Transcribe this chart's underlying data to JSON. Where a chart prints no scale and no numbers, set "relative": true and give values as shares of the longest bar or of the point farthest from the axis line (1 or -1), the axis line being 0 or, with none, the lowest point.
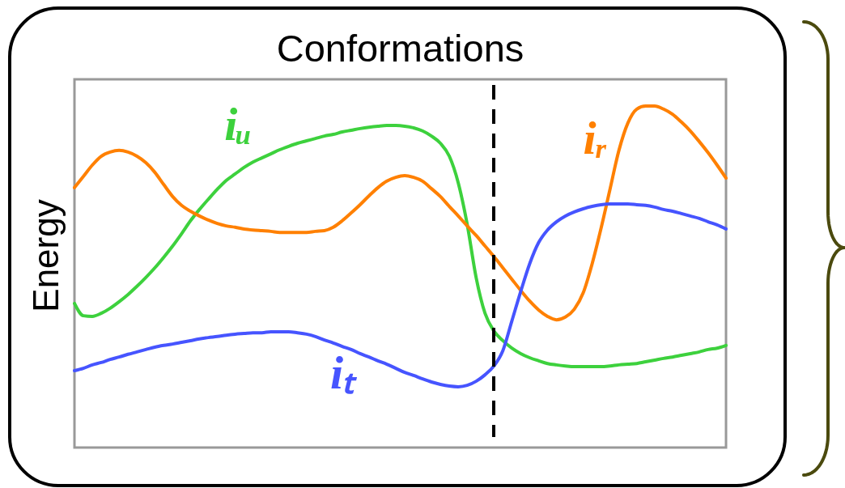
{
  "chart_data": {
    "type": "line",
    "title": "Conformations",
    "ylabel": "Energy",
    "relative": true,
    "tick_labels": false,
    "line_style": "solid",
    "categories": [
      null,
      null,
      null,
      null,
      null,
      null,
      null,
      null,
      null,
      null,
      null,
      null,
      null,
      null,
      null,
      null,
      null,
      null,
      null,
      null,
      null,
      null,
      null,
      null,
      null,
      null,
      null,
      null,
      null,
      null,
      null,
      null,
      null,
      null,
      null,
      null,
      null,
      null,
      null,
      null,
      null,
      null,
      null,
      null,
      null,
      null,
      null,
      null,
      null,
      null,
      null,
      null,
      null,
      null,
      null,
      null,
      null,
      null,
      null,
      null,
      null,
      null,
      null,
      null,
      null,
      null,
      null,
      null,
      null,
      null,
      null,
      null,
      null,
      null
    ],
    "series": [
      {
        "name": "iᵤ",
        "color": "#3dd13d",
        "values": [
          0.422,
          0.386,
          0.384,
          0.393,
          0.408,
          0.427,
          0.448,
          0.472,
          0.498,
          0.526,
          0.557,
          0.59,
          0.626,
          0.664,
          0.697,
          0.727,
          0.756,
          0.782,
          0.801,
          0.82,
          0.836,
          0.848,
          0.86,
          0.872,
          0.882,
          0.891,
          0.898,
          0.905,
          0.912,
          0.917,
          0.924,
          0.929,
          0.934,
          0.938,
          0.941,
          0.943,
          0.943,
          0.941,
          0.936,
          0.927,
          0.912,
          0.891,
          0.853,
          0.775,
          0.654,
          0.498,
          0.393,
          0.341,
          0.313,
          0.291,
          0.275,
          0.263,
          0.254,
          0.246,
          0.242,
          0.239,
          0.237,
          0.237,
          0.237,
          0.237,
          0.239,
          0.242,
          0.244,
          0.246,
          0.251,
          0.256,
          0.261,
          0.265,
          0.27,
          0.275,
          0.28,
          0.287,
          0.291,
          0.299
        ]
      },
      {
        "name": "iᵣ",
        "color": "#ff8000",
        "values": [
          0.761,
          0.794,
          0.827,
          0.853,
          0.865,
          0.87,
          0.865,
          0.853,
          0.834,
          0.806,
          0.77,
          0.735,
          0.709,
          0.692,
          0.678,
          0.666,
          0.656,
          0.649,
          0.645,
          0.64,
          0.637,
          0.635,
          0.633,
          0.63,
          0.63,
          0.63,
          0.63,
          0.633,
          0.635,
          0.645,
          0.664,
          0.687,
          0.711,
          0.737,
          0.761,
          0.78,
          0.791,
          0.796,
          0.791,
          0.78,
          0.758,
          0.735,
          0.706,
          0.678,
          0.649,
          0.621,
          0.59,
          0.559,
          0.526,
          0.493,
          0.46,
          0.429,
          0.403,
          0.384,
          0.374,
          0.382,
          0.405,
          0.453,
          0.538,
          0.642,
          0.756,
          0.87,
          0.95,
          0.991,
          1.0,
          1.0,
          0.991,
          0.976,
          0.953,
          0.927,
          0.896,
          0.863,
          0.827,
          0.789
        ]
      },
      {
        "name": "iₜ",
        "color": "#4654ff",
        "values": [
          0.225,
          0.232,
          0.242,
          0.249,
          0.258,
          0.265,
          0.273,
          0.28,
          0.287,
          0.294,
          0.299,
          0.303,
          0.308,
          0.313,
          0.318,
          0.322,
          0.325,
          0.329,
          0.332,
          0.334,
          0.336,
          0.336,
          0.339,
          0.339,
          0.339,
          0.336,
          0.332,
          0.325,
          0.315,
          0.306,
          0.296,
          0.287,
          0.275,
          0.265,
          0.254,
          0.244,
          0.232,
          0.22,
          0.211,
          0.201,
          0.192,
          0.185,
          0.18,
          0.178,
          0.182,
          0.194,
          0.213,
          0.239,
          0.284,
          0.37,
          0.457,
          0.538,
          0.6,
          0.637,
          0.661,
          0.678,
          0.69,
          0.699,
          0.706,
          0.711,
          0.713,
          0.713,
          0.713,
          0.711,
          0.709,
          0.704,
          0.697,
          0.692,
          0.685,
          0.678,
          0.671,
          0.661,
          0.652,
          0.64
        ]
      }
    ]
  }
}
